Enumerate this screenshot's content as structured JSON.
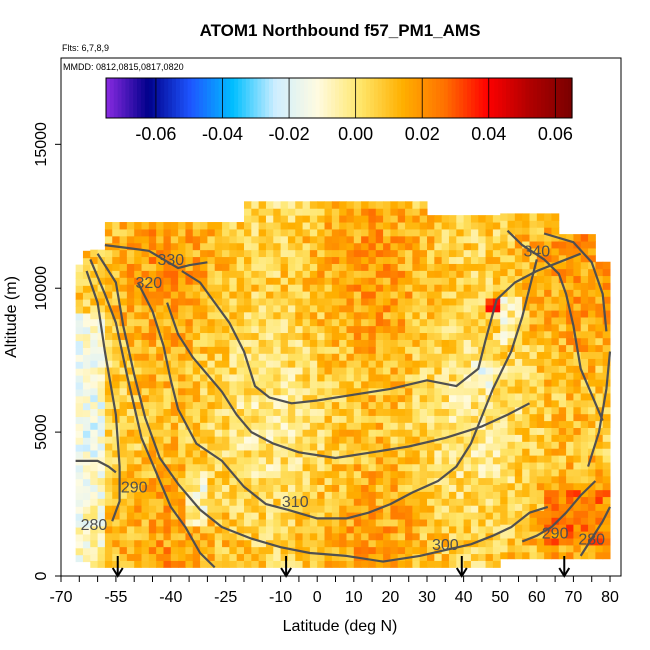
{
  "chart_data": {
    "type": "heatmap",
    "title": "ATOM1 Northbound f57_PM1_AMS",
    "subtitle_lines": [
      "Flts: 6,7,8,9",
      "MMDD: 0812,0815,0817,0820"
    ],
    "xlabel": "Latitude (deg N)",
    "ylabel": "Altitude (m)",
    "xlim": [
      -70,
      83
    ],
    "ylim": [
      0,
      18000
    ],
    "x_ticks": [
      -70,
      -55,
      -40,
      -25,
      -10,
      0,
      10,
      20,
      30,
      40,
      50,
      60,
      70,
      80
    ],
    "y_ticks": [
      0,
      5000,
      10000,
      15000
    ],
    "colorbar": {
      "range": [
        -0.075,
        0.065
      ],
      "ticks": [
        "-0.06",
        "-0.04",
        "-0.02",
        "0.00",
        "0.02",
        "0.04",
        "0.06"
      ],
      "tick_values": [
        -0.06,
        -0.04,
        -0.02,
        0.0,
        0.02,
        0.04,
        0.06
      ],
      "colors": [
        "#8a2be2",
        "#00008b",
        "#1e56ff",
        "#00bfff",
        "#cfeeff",
        "#fffbe0",
        "#ffe66b",
        "#ffb000",
        "#ff7000",
        "#ff0000",
        "#b00000",
        "#7a0000"
      ]
    },
    "heatmap_extent": {
      "lat_min": -66,
      "lat_max": 80,
      "alt_min": 500,
      "alt_max": 12900
    },
    "contour_labels": [
      {
        "text": "280",
        "lat": -61,
        "alt": 1600
      },
      {
        "text": "290",
        "lat": -50,
        "alt": 2900
      },
      {
        "text": "310",
        "lat": -6,
        "alt": 2400
      },
      {
        "text": "300",
        "lat": 35,
        "alt": 900
      },
      {
        "text": "290",
        "lat": 65,
        "alt": 1300
      },
      {
        "text": "280",
        "lat": 75,
        "alt": 1100
      },
      {
        "text": "320",
        "lat": -46,
        "alt": 10000
      },
      {
        "text": "330",
        "lat": -40,
        "alt": 10800
      },
      {
        "text": "340",
        "lat": 60,
        "alt": 11100
      }
    ],
    "contours": [
      [
        [
          -66,
          4000
        ],
        [
          -60,
          4000
        ],
        [
          -57,
          3800
        ],
        [
          -55,
          3600
        ]
      ],
      [
        [
          -63,
          10600
        ],
        [
          -60,
          9500
        ],
        [
          -58,
          7800
        ],
        [
          -55,
          5600
        ],
        [
          -54,
          3800
        ],
        [
          -54,
          2600
        ],
        [
          -56,
          1900
        ]
      ],
      [
        [
          -62,
          11000
        ],
        [
          -58,
          9800
        ],
        [
          -55,
          8800
        ],
        [
          -52,
          7000
        ],
        [
          -48,
          4800
        ],
        [
          -44,
          3600
        ],
        [
          -40,
          2400
        ],
        [
          -36,
          1700
        ],
        [
          -32,
          800
        ],
        [
          -28,
          300
        ]
      ],
      [
        [
          -60,
          11200
        ],
        [
          -55,
          10200
        ],
        [
          -53,
          8700
        ],
        [
          -50,
          7000
        ],
        [
          -47,
          5500
        ],
        [
          -43,
          4100
        ],
        [
          -38,
          3200
        ],
        [
          -32,
          2300
        ],
        [
          -26,
          1700
        ],
        [
          -18,
          1300
        ],
        [
          -10,
          1000
        ],
        [
          -2,
          800
        ],
        [
          8,
          700
        ],
        [
          18,
          500
        ],
        [
          28,
          700
        ],
        [
          35,
          900
        ],
        [
          42,
          1100
        ],
        [
          48,
          1400
        ],
        [
          53,
          1700
        ],
        [
          58,
          2200
        ],
        [
          63,
          2400
        ]
      ],
      [
        [
          -49,
          10200
        ],
        [
          -45,
          9200
        ],
        [
          -42,
          8000
        ],
        [
          -40,
          6800
        ],
        [
          -38,
          5800
        ],
        [
          -33,
          4600
        ],
        [
          -26,
          4000
        ],
        [
          -20,
          3100
        ],
        [
          -14,
          2500
        ],
        [
          -8,
          2300
        ],
        [
          0,
          2000
        ],
        [
          8,
          2000
        ],
        [
          14,
          2200
        ],
        [
          20,
          2500
        ],
        [
          26,
          2900
        ],
        [
          33,
          3300
        ],
        [
          38,
          3800
        ],
        [
          42,
          4600
        ],
        [
          48,
          6500
        ],
        [
          53,
          7800
        ],
        [
          56,
          9000
        ],
        [
          60,
          11000
        ]
      ],
      [
        [
          -41,
          9500
        ],
        [
          -38,
          8400
        ],
        [
          -34,
          7600
        ],
        [
          -30,
          7000
        ],
        [
          -26,
          6400
        ],
        [
          -22,
          5600
        ],
        [
          -18,
          5000
        ],
        [
          -12,
          4600
        ],
        [
          -5,
          4300
        ],
        [
          5,
          4100
        ],
        [
          15,
          4300
        ],
        [
          25,
          4500
        ],
        [
          35,
          4800
        ],
        [
          45,
          5200
        ],
        [
          52,
          5600
        ],
        [
          58,
          6000
        ]
      ],
      [
        [
          -37,
          10600
        ],
        [
          -32,
          10200
        ],
        [
          -28,
          9500
        ],
        [
          -24,
          8800
        ],
        [
          -20,
          7800
        ],
        [
          -17,
          6600
        ],
        [
          -13,
          6200
        ],
        [
          -7,
          6000
        ],
        [
          0,
          6100
        ],
        [
          10,
          6300
        ],
        [
          20,
          6500
        ],
        [
          30,
          6800
        ],
        [
          38,
          6600
        ],
        [
          44,
          7200
        ],
        [
          46,
          8200
        ],
        [
          49,
          9600
        ],
        [
          54,
          10200
        ],
        [
          60,
          10600
        ],
        [
          66,
          10900
        ],
        [
          72,
          11200
        ]
      ],
      [
        [
          -58,
          11500
        ],
        [
          -52,
          11400
        ],
        [
          -46,
          11300
        ],
        [
          -42,
          11000
        ],
        [
          -38,
          10700
        ],
        [
          -35,
          10800
        ],
        [
          -30,
          10900
        ]
      ],
      [
        [
          52,
          12000
        ],
        [
          56,
          11500
        ],
        [
          62,
          11000
        ],
        [
          66,
          10500
        ],
        [
          68,
          9800
        ],
        [
          70,
          8700
        ],
        [
          72,
          7200
        ],
        [
          76,
          6000
        ],
        [
          78,
          5400
        ]
      ],
      [
        [
          62,
          11900
        ],
        [
          70,
          11600
        ],
        [
          75,
          10900
        ],
        [
          78,
          9800
        ],
        [
          79,
          8500
        ]
      ],
      [
        [
          56,
          1200
        ],
        [
          60,
          1400
        ],
        [
          64,
          1700
        ],
        [
          68,
          2200
        ],
        [
          72,
          2800
        ],
        [
          76,
          3300
        ]
      ],
      [
        [
          72,
          700
        ],
        [
          75,
          1300
        ],
        [
          78,
          1900
        ],
        [
          80,
          2400
        ]
      ],
      [
        [
          74,
          3800
        ],
        [
          77,
          5000
        ],
        [
          79,
          6500
        ],
        [
          80,
          7800
        ]
      ]
    ],
    "arrows_lat": [
      -54.5,
      -8.5,
      39.5,
      67.5
    ]
  }
}
